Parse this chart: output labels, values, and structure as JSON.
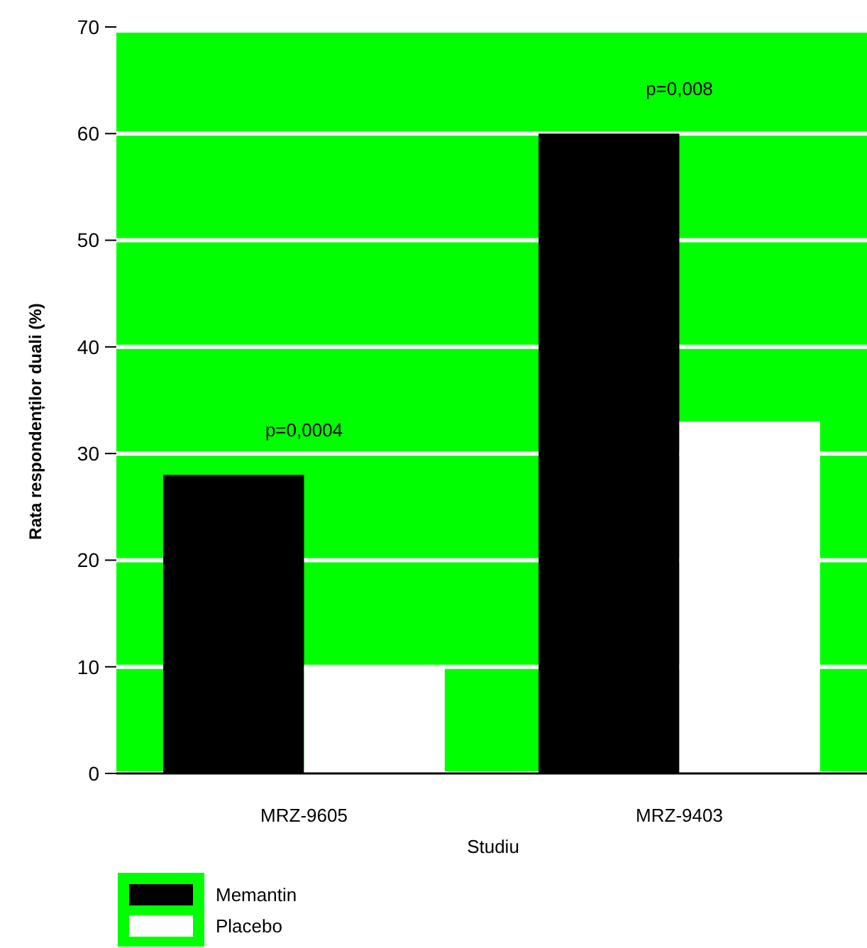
{
  "chart_data": {
    "type": "bar",
    "xlabel": "Studiu",
    "ylabel": "Rata respondenților duali (%)",
    "categories": [
      "MRZ-9605",
      "MRZ-9403"
    ],
    "series": [
      {
        "name": "Memantin",
        "color": "#000000",
        "values": [
          28,
          60
        ]
      },
      {
        "name": "Placebo",
        "color": "#ffffff",
        "values": [
          10,
          33
        ]
      }
    ],
    "ylim": [
      0,
      70
    ],
    "yticks": [
      0,
      10,
      20,
      30,
      40,
      50,
      60,
      70
    ],
    "grid": "y",
    "legend": "bottom left",
    "annotations": [
      "p=0,0004",
      "p=0,008"
    ]
  }
}
